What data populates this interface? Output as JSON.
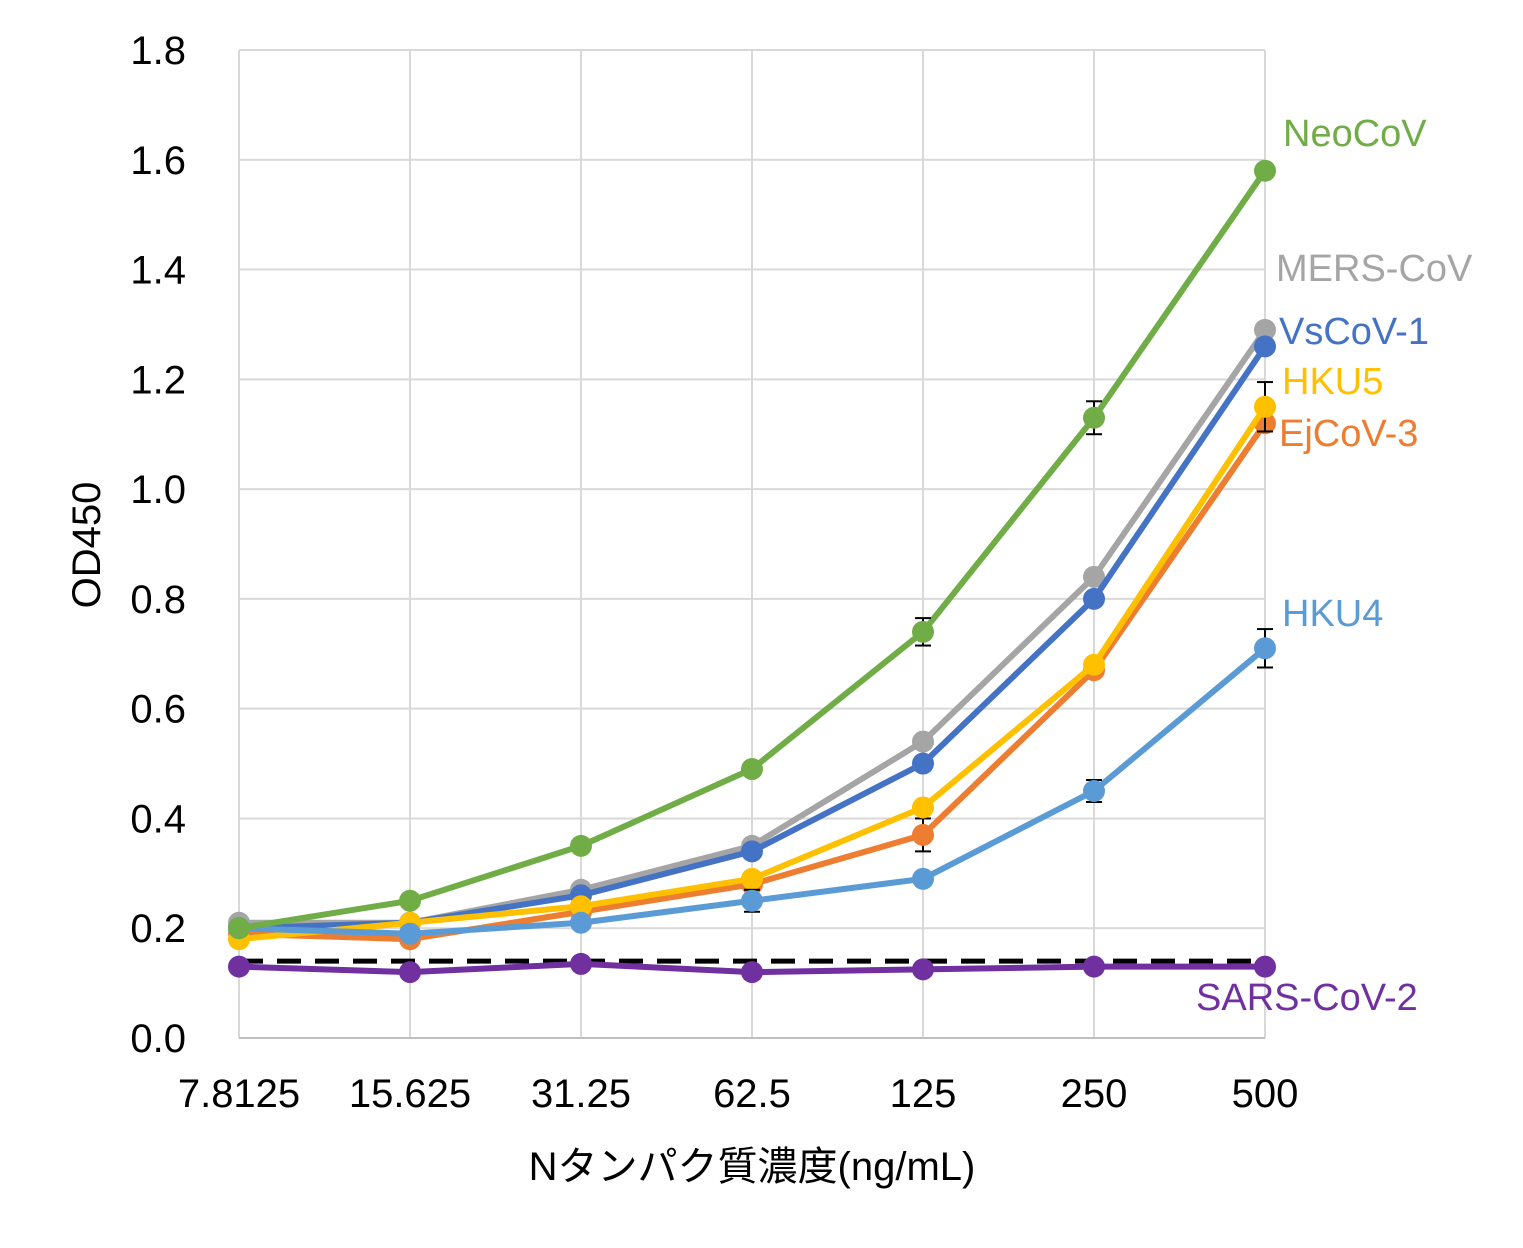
{
  "chart_data": {
    "type": "line",
    "title": "",
    "xlabel": "Nタンパク質濃度(ng/mL)",
    "ylabel": "OD450",
    "categories": [
      "7.8125",
      "15.625",
      "31.25",
      "62.5",
      "125",
      "250",
      "500"
    ],
    "ylim": [
      0,
      1.8
    ],
    "yticks": [
      "0.0",
      "0.2",
      "0.4",
      "0.6",
      "0.8",
      "1.0",
      "1.2",
      "1.4",
      "1.6",
      "1.8"
    ],
    "grid": true,
    "series": [
      {
        "name": "MERS-CoV",
        "color": "#A5A5A5",
        "values": [
          0.21,
          0.21,
          0.27,
          0.35,
          0.54,
          0.84,
          1.29
        ],
        "errors": [
          0.0,
          0.0,
          0.0,
          0.0,
          0.0,
          0.0,
          0.0
        ]
      },
      {
        "name": "VsCoV-1",
        "color": "#4472C4",
        "values": [
          0.2,
          0.21,
          0.26,
          0.34,
          0.5,
          0.8,
          1.26
        ],
        "errors": [
          0.0,
          0.0,
          0.0,
          0.0,
          0.0,
          0.0,
          0.0
        ]
      },
      {
        "name": "EjCoV-3",
        "color": "#ED7D31",
        "values": [
          0.19,
          0.18,
          0.23,
          0.28,
          0.37,
          0.67,
          1.12
        ],
        "errors": [
          0.0,
          0.0,
          0.0,
          0.0,
          0.03,
          0.0,
          0.0
        ]
      },
      {
        "name": "HKU5",
        "color": "#FFC000",
        "values": [
          0.18,
          0.21,
          0.24,
          0.29,
          0.42,
          0.68,
          1.15
        ],
        "errors": [
          0.0,
          0.0,
          0.0,
          0.0,
          0.0,
          0.0,
          0.045
        ]
      },
      {
        "name": "HKU4",
        "color": "#5B9BD5",
        "values": [
          0.2,
          0.19,
          0.21,
          0.25,
          0.29,
          0.45,
          0.71
        ],
        "errors": [
          0.0,
          0.0,
          0.0,
          0.02,
          0.0,
          0.02,
          0.035
        ]
      },
      {
        "name": "NeoCoV",
        "color": "#70AD47",
        "values": [
          0.2,
          0.25,
          0.35,
          0.49,
          0.74,
          1.13,
          1.58
        ],
        "errors": [
          0.0,
          0.0,
          0.0,
          0.0,
          0.025,
          0.03,
          0.0
        ]
      },
      {
        "name": "SARS-CoV-2",
        "color": "#7030A0",
        "values": [
          0.13,
          0.12,
          0.135,
          0.12,
          0.125,
          0.13,
          0.13
        ],
        "errors": [
          0.0,
          0.0,
          0.0,
          0.0,
          0.0,
          0.0,
          0.0
        ]
      }
    ],
    "threshold": {
      "value": 0.14,
      "color": "#000000",
      "style": "dashed"
    },
    "series_label_placement": "right of last point"
  }
}
